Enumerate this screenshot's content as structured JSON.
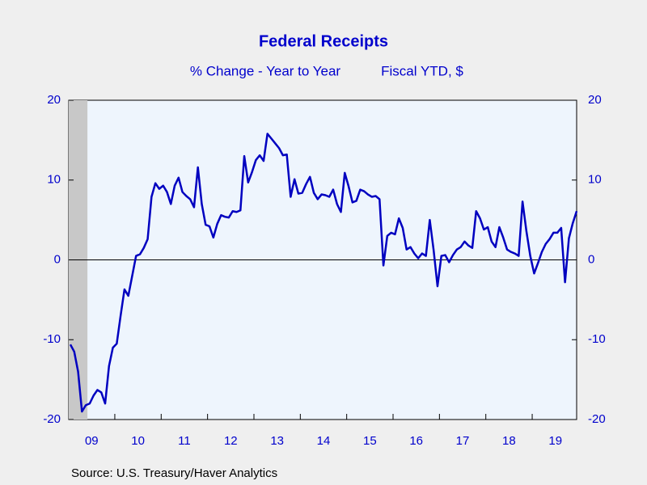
{
  "chart_data": {
    "type": "line",
    "title": "Federal Receipts",
    "subtitle": "% Change - Year to Year",
    "subtitle_right": "Fiscal YTD, $",
    "source": "Source:  U.S. Treasury/Haver Analytics",
    "categories": [
      null,
      null,
      null,
      null,
      null,
      null,
      "09",
      null,
      null,
      null,
      null,
      null,
      null,
      null,
      null,
      null,
      null,
      null,
      "10",
      null,
      null,
      null,
      null,
      null,
      null,
      null,
      null,
      null,
      null,
      null,
      "11",
      null,
      null,
      null,
      null,
      null,
      null,
      null,
      null,
      null,
      null,
      null,
      "12",
      null,
      null,
      null,
      null,
      null,
      null,
      null,
      null,
      null,
      null,
      null,
      "13",
      null,
      null,
      null,
      null,
      null,
      null,
      null,
      null,
      null,
      null,
      null,
      "14",
      null,
      null,
      null,
      null,
      null,
      null,
      null,
      null,
      null,
      null,
      null,
      "15",
      null,
      null,
      null,
      null,
      null,
      null,
      null,
      null,
      null,
      null,
      null,
      "16",
      null,
      null,
      null,
      null,
      null,
      null,
      null,
      null,
      null,
      null,
      null,
      "17",
      null,
      null,
      null,
      null,
      null,
      null,
      null,
      null,
      null,
      null,
      null,
      "18",
      null,
      null,
      null,
      null,
      null,
      null,
      null,
      null,
      null,
      null,
      null,
      "19",
      null,
      null,
      null,
      null,
      null
    ],
    "series": [
      {
        "name": "Federal Receipts",
        "color": "#0000c0",
        "values": [
          -10.6,
          -11.5,
          -14,
          -19,
          -18.2,
          -18,
          -17,
          -16.3,
          -16.6,
          -18,
          -13.3,
          -11,
          -10.5,
          -7,
          -3.7,
          -4.5,
          -2,
          0.5,
          0.7,
          1.5,
          2.6,
          7.9,
          9.6,
          8.9,
          9.3,
          8.5,
          7,
          9.3,
          10.3,
          8.5,
          8,
          7.6,
          6.6,
          11.6,
          7,
          4.4,
          4.2,
          2.8,
          4.5,
          5.6,
          5.4,
          5.3,
          6.1,
          6,
          6.2,
          13,
          9.7,
          11,
          12.5,
          13.1,
          12.4,
          15.8,
          15.2,
          14.6,
          14,
          13.1,
          13.2,
          7.9,
          10.1,
          8.3,
          8.4,
          9.5,
          10.4,
          8.4,
          7.6,
          8.2,
          8.1,
          7.9,
          8.8,
          7,
          6,
          10.9,
          9.2,
          7.2,
          7.4,
          8.8,
          8.6,
          8.2,
          7.9,
          8,
          7.6,
          -0.7,
          3,
          3.4,
          3.2,
          5.2,
          4,
          1.3,
          1.6,
          0.8,
          0.2,
          0.8,
          0.5,
          5,
          1.2,
          -3.3,
          0.5,
          0.6,
          -0.3,
          0.6,
          1.3,
          1.6,
          2.3,
          1.8,
          1.5,
          6.1,
          5.2,
          3.8,
          4.1,
          2.3,
          1.6,
          4.1,
          2.8,
          1.3,
          1,
          0.8,
          0.5,
          7.3,
          3.6,
          0.5,
          -1.7,
          -0.4,
          1,
          2,
          2.6,
          3.4,
          3.4,
          4,
          -2.8,
          2.7,
          4.6,
          6.1
        ]
      }
    ],
    "shade": [
      0,
      4
    ],
    "ylim": [
      -20,
      20
    ],
    "yticks": [
      -20,
      -10,
      0,
      10,
      20
    ],
    "y2lim": [
      -20,
      20
    ],
    "y2ticks": [
      -20,
      -10,
      0,
      10,
      20
    ]
  }
}
